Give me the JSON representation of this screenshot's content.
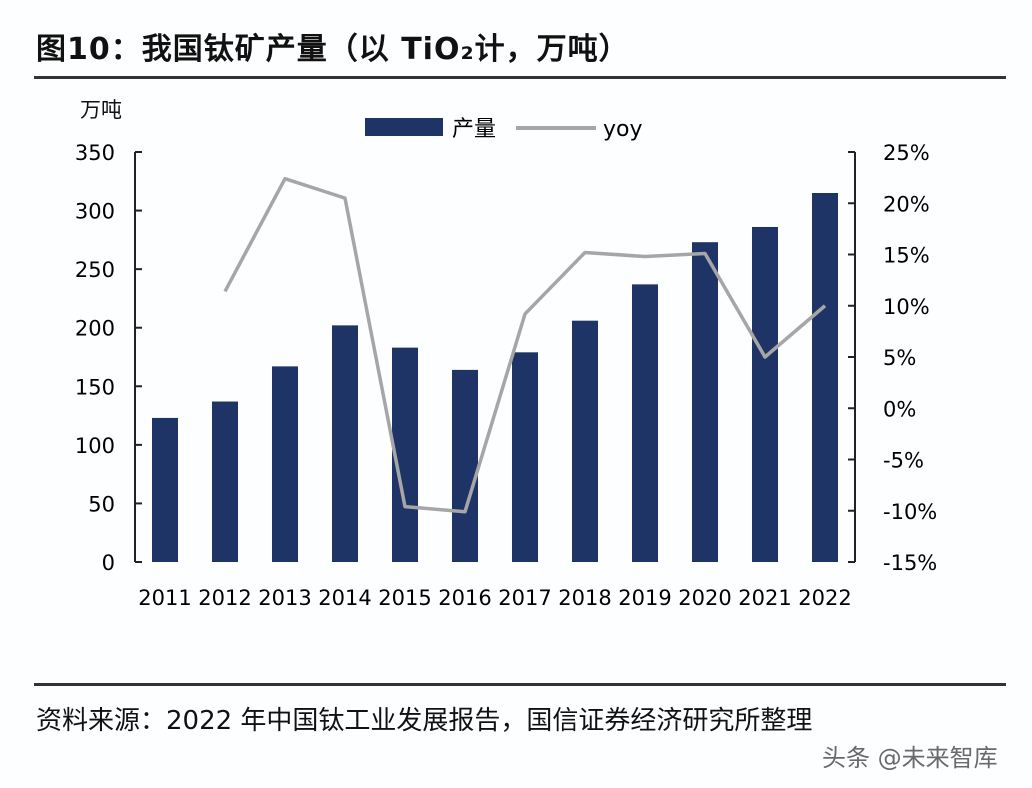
{
  "title": "图10：我国钛矿产量（以 TiO₂计，万吨）",
  "footer": "资料来源：2022 年中国钛工业发展报告，国信证券经济研究所整理",
  "watermark": "头条 @未来智库",
  "chart_data": {
    "type": "bar+line",
    "categories": [
      "2011",
      "2012",
      "2013",
      "2014",
      "2015",
      "2016",
      "2017",
      "2018",
      "2019",
      "2020",
      "2021",
      "2022"
    ],
    "ylabel": "万吨",
    "ylim": [
      0,
      350
    ],
    "yticks": [
      "0",
      "50",
      "100",
      "150",
      "200",
      "250",
      "300",
      "350"
    ],
    "y2lim": [
      -15,
      25
    ],
    "y2ticks": [
      "-15%",
      "-10%",
      "-5%",
      "0%",
      "5%",
      "10%",
      "15%",
      "20%",
      "25%"
    ],
    "legend_position": "top",
    "grid": false,
    "series": [
      {
        "name": "产量",
        "type": "bar",
        "axis": "left",
        "color": "#1f3466",
        "values": [
          123,
          137,
          167,
          202,
          183,
          164,
          179,
          206,
          237,
          273,
          286,
          315
        ]
      },
      {
        "name": "yoy",
        "type": "line",
        "axis": "right",
        "unit": "%",
        "color": "#a6a6a6",
        "values": [
          null,
          11.4,
          22.4,
          20.5,
          -9.6,
          -10.1,
          9.2,
          15.2,
          14.8,
          15.1,
          5.0,
          10.0
        ]
      }
    ]
  }
}
